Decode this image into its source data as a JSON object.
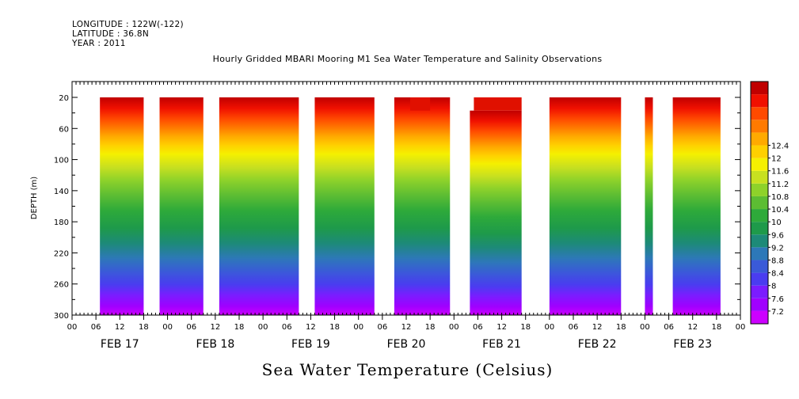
{
  "header": {
    "longitude": "LONGITUDE : 122W(-122)",
    "latitude": "LATITUDE : 36.8N",
    "year": "YEAR : 2011"
  },
  "chart_data": {
    "type": "heatmap",
    "title": "Hourly Gridded MBARI Mooring M1 Sea Water Temperature and Salinity Observations",
    "xlabel": "Sea Water Temperature (Celsius)",
    "ylabel": "DEPTH (m)",
    "y_ticks": [
      20,
      60,
      100,
      140,
      180,
      220,
      260,
      300
    ],
    "ylim": [
      300,
      20
    ],
    "x_hour_ticks": [
      "00",
      "06",
      "12",
      "18",
      "00",
      "06",
      "12",
      "18",
      "00",
      "06",
      "12",
      "18",
      "00",
      "06",
      "12",
      "18",
      "00",
      "06",
      "12",
      "18",
      "00",
      "06",
      "12",
      "18",
      "00",
      "06",
      "12",
      "18",
      "00"
    ],
    "x_day_labels": [
      "FEB 17",
      "FEB 18",
      "FEB 19",
      "FEB 20",
      "FEB 21",
      "FEB 22",
      "FEB 23"
    ],
    "x_range_hours": [
      0,
      168
    ],
    "colorbar_levels": [
      "7.2",
      "7.6",
      "8",
      "8.4",
      "8.8",
      "9.2",
      "9.6",
      "10",
      "10.4",
      "10.8",
      "11.2",
      "11.6",
      "12",
      "12.4"
    ],
    "colorbar_colors": [
      "#cc00ff",
      "#a000ff",
      "#7b1cff",
      "#4a3cf0",
      "#3a5ad8",
      "#2d78b8",
      "#1d8a78",
      "#1e9a4a",
      "#2eaa3a",
      "#5cbd33",
      "#8ed22a",
      "#c8e020",
      "#f5f000",
      "#ffd000",
      "#ffaa00",
      "#ff7a00",
      "#ff4a00",
      "#f01000",
      "#c00000"
    ],
    "data_segments_hours": [
      [
        7,
        18
      ],
      [
        22,
        33
      ],
      [
        37,
        57
      ],
      [
        61,
        76
      ],
      [
        81,
        95
      ],
      [
        100,
        113
      ],
      [
        120,
        138
      ],
      [
        144,
        146
      ],
      [
        151,
        163
      ]
    ],
    "data_segments_top_depth": [
      20,
      20,
      20,
      20,
      20,
      37,
      20,
      20,
      20
    ],
    "thermocline_depth_m": 95,
    "surface_temp_c": 12.2,
    "bottom_temp_c": 7.4
  }
}
